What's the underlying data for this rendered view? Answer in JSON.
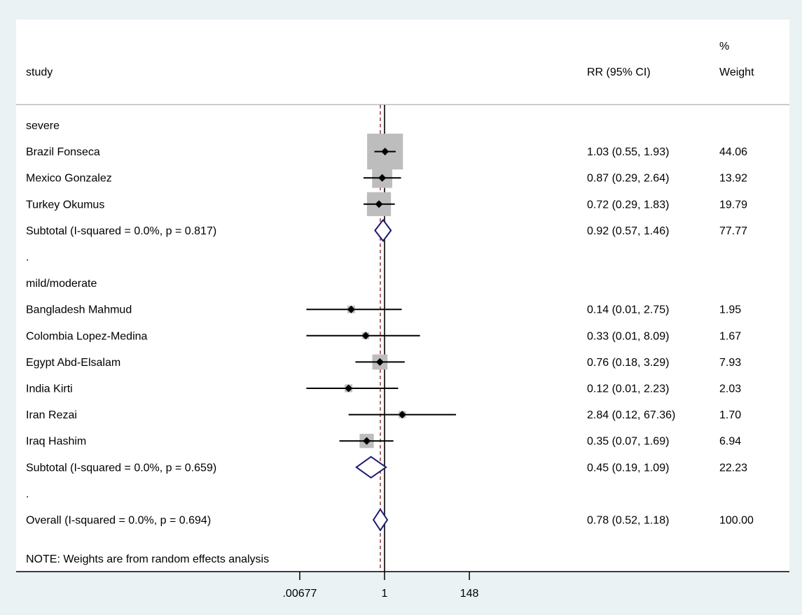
{
  "chart_data": {
    "type": "forest",
    "header": {
      "study_label": "study",
      "effect_label": "RR (95% CI)",
      "weight_label_line1": "%",
      "weight_label_line2": "Weight"
    },
    "scale": "log",
    "x_ticks": [
      {
        "value": 0.00677,
        "label": ".00677"
      },
      {
        "value": 1,
        "label": "1"
      },
      {
        "value": 148,
        "label": "148"
      }
    ],
    "null_line": 1,
    "overall_line": 0.78,
    "rows": [
      {
        "kind": "header",
        "label": "severe"
      },
      {
        "kind": "study",
        "label": "Brazil Fonseca",
        "rr": 1.03,
        "lo": 0.55,
        "hi": 1.93,
        "rr_text": "1.03 (0.55, 1.93)",
        "weight": 44.06,
        "weight_text": "44.06"
      },
      {
        "kind": "study",
        "label": "Mexico Gonzalez",
        "rr": 0.87,
        "lo": 0.29,
        "hi": 2.64,
        "rr_text": "0.87 (0.29, 2.64)",
        "weight": 13.92,
        "weight_text": "13.92"
      },
      {
        "kind": "study",
        "label": "Turkey Okumus",
        "rr": 0.72,
        "lo": 0.29,
        "hi": 1.83,
        "rr_text": "0.72 (0.29, 1.83)",
        "weight": 19.79,
        "weight_text": "19.79"
      },
      {
        "kind": "subtotal",
        "label": "Subtotal  (I-squared = 0.0%, p = 0.817)",
        "rr": 0.92,
        "lo": 0.57,
        "hi": 1.46,
        "rr_text": "0.92 (0.57, 1.46)",
        "weight_text": "77.77"
      },
      {
        "kind": "spacer",
        "label": "."
      },
      {
        "kind": "header",
        "label": "mild/moderate"
      },
      {
        "kind": "study",
        "label": "Bangladesh Mahmud",
        "rr": 0.14,
        "lo": 0.01,
        "hi": 2.75,
        "rr_text": "0.14 (0.01, 2.75)",
        "weight": 1.95,
        "weight_text": "1.95"
      },
      {
        "kind": "study",
        "label": "Colombia Lopez-Medina",
        "rr": 0.33,
        "lo": 0.01,
        "hi": 8.09,
        "rr_text": "0.33 (0.01, 8.09)",
        "weight": 1.67,
        "weight_text": "1.67"
      },
      {
        "kind": "study",
        "label": "Egypt Abd-Elsalam",
        "rr": 0.76,
        "lo": 0.18,
        "hi": 3.29,
        "rr_text": "0.76 (0.18, 3.29)",
        "weight": 7.93,
        "weight_text": "7.93"
      },
      {
        "kind": "study",
        "label": "India Kirti",
        "rr": 0.12,
        "lo": 0.01,
        "hi": 2.23,
        "rr_text": "0.12 (0.01, 2.23)",
        "weight": 2.03,
        "weight_text": "2.03"
      },
      {
        "kind": "study",
        "label": "Iran Rezai",
        "rr": 2.84,
        "lo": 0.12,
        "hi": 67.36,
        "rr_text": "2.84 (0.12, 67.36)",
        "weight": 1.7,
        "weight_text": "1.70"
      },
      {
        "kind": "study",
        "label": "Iraq Hashim",
        "rr": 0.35,
        "lo": 0.07,
        "hi": 1.69,
        "rr_text": "0.35 (0.07, 1.69)",
        "weight": 6.94,
        "weight_text": "6.94"
      },
      {
        "kind": "subtotal",
        "label": "Subtotal  (I-squared = 0.0%, p = 0.659)",
        "rr": 0.45,
        "lo": 0.19,
        "hi": 1.09,
        "rr_text": "0.45 (0.19, 1.09)",
        "weight_text": "22.23"
      },
      {
        "kind": "spacer",
        "label": "."
      },
      {
        "kind": "overall",
        "label": "Overall  (I-squared = 0.0%, p = 0.694)",
        "rr": 0.78,
        "lo": 0.52,
        "hi": 1.18,
        "rr_text": "0.78 (0.52, 1.18)",
        "weight_text": "100.00"
      }
    ],
    "note": "NOTE: Weights are from random effects analysis",
    "colors": {
      "background": "#eaf2f3",
      "panel": "#ffffff",
      "square": "#bdbdbd",
      "ci_line": "#000000",
      "diamond": "#1a1a6e",
      "overall_line": "#8b1a1a",
      "header_rule": "#b9b9b9"
    }
  }
}
